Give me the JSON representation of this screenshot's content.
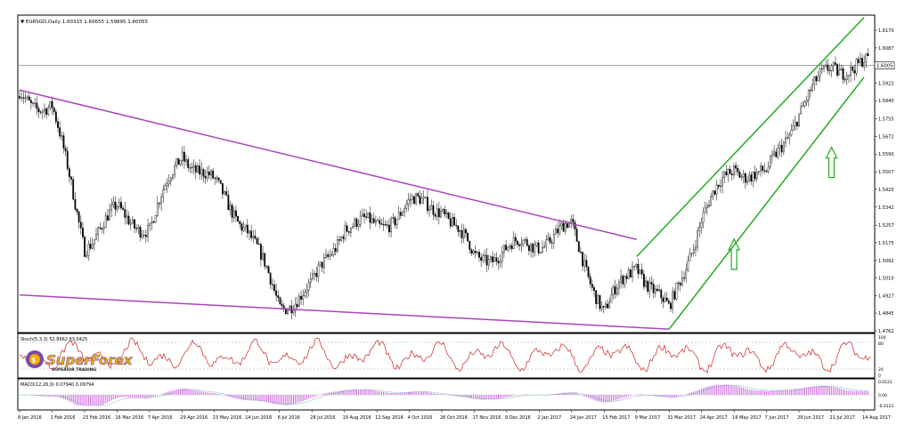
{
  "header": {
    "symbol_label": "EURSGD,Daily",
    "ohlc": "1.60315 1.60655 1.59895 1.60055"
  },
  "stoch": {
    "label": "Stoch(5,3,3) 52.8662 63.0425",
    "ticks": [
      "100",
      "80",
      "20",
      "0"
    ]
  },
  "macd": {
    "label": "MACD(12,26,9) 0.07940 0.09794",
    "ticks": [
      "0.0122",
      "0.00",
      "-0.0122"
    ]
  },
  "logo": {
    "brand": "SuperForex",
    "tagline": "SUPERIOR TRADING"
  },
  "colors": {
    "candles": "#000000",
    "channel": "#22aa22",
    "wedge": "#aa44bb",
    "stoch_line": "#cc2222",
    "macd_hist": "#cc66dd",
    "macd_signal": "#4aa0a0",
    "current_price_line": "#888888"
  },
  "chart_data": {
    "type": "candlestick",
    "title": "EURSGD,Daily",
    "price_axis": {
      "ticks": [
        "1.6170",
        "1.6087",
        "1.6005",
        "1.5922",
        "1.5840",
        "1.5755",
        "1.5672",
        "1.5590",
        "1.5507",
        "1.5425",
        "1.5342",
        "1.5257",
        "1.5175",
        "1.5092",
        "1.5010",
        "1.4927",
        "1.4845",
        "1.4762"
      ],
      "current_price": "1.6005",
      "ylim": [
        1.4762,
        1.617
      ]
    },
    "date_axis": {
      "ticks": [
        "8 Jan 2016",
        "1 Feb 2016",
        "23 Feb 2016",
        "16 Mar 2016",
        "7 Apr 2016",
        "29 Apr 2016",
        "23 May 2016",
        "14 Jun 2016",
        "6 Jul 2016",
        "28 Jul 2016",
        "19 Aug 2016",
        "12 Sep 2016",
        "4 Oct 2016",
        "26 Oct 2016",
        "17 Nov 2016",
        "9 Dec 2016",
        "2 Jan 2017",
        "24 Jan 2017",
        "15 Feb 2017",
        "9 Mar 2017",
        "31 Mar 2017",
        "24 Apr 2017",
        "16 May 2017",
        "7 Jun 2017",
        "29 Jun 2017",
        "21 Jul 2017",
        "14 Aug 2017"
      ]
    },
    "close_path": {
      "note_series": "approximate closing levels at each date tick",
      "dates": [
        "8 Jan 2016",
        "1 Feb 2016",
        "23 Feb 2016",
        "16 Mar 2016",
        "7 Apr 2016",
        "29 Apr 2016",
        "23 May 2016",
        "14 Jun 2016",
        "6 Jul 2016",
        "28 Jul 2016",
        "19 Aug 2016",
        "12 Sep 2016",
        "4 Oct 2016",
        "26 Oct 2016",
        "17 Nov 2016",
        "9 Dec 2016",
        "2 Jan 2017",
        "24 Jan 2017",
        "15 Feb 2017",
        "9 Mar 2017",
        "31 Mar 2017",
        "24 Apr 2017",
        "16 May 2017",
        "7 Jun 2017",
        "29 Jun 2017",
        "21 Jul 2017",
        "14 Aug 2017"
      ],
      "values": [
        1.586,
        1.581,
        1.517,
        1.532,
        1.524,
        1.56,
        1.544,
        1.525,
        1.488,
        1.496,
        1.526,
        1.525,
        1.535,
        1.535,
        1.51,
        1.514,
        1.518,
        1.524,
        1.485,
        1.508,
        1.484,
        1.53,
        1.553,
        1.548,
        1.58,
        1.6,
        1.6005
      ]
    },
    "lines": [
      {
        "name": "",
        "kind": "wedge-upper",
        "from": [
          "8 Jan 2016",
          1.589
        ],
        "to": [
          "9 Mar 2017",
          1.519
        ]
      },
      {
        "name": "",
        "kind": "wedge-lower",
        "from": [
          "8 Jan 2016",
          1.493
        ],
        "to": [
          "31 Mar 2017",
          1.477
        ]
      },
      {
        "name": "",
        "kind": "channel-upper",
        "from": [
          "9 Mar 2017",
          1.511
        ],
        "to": [
          "14 Aug 2017",
          1.623
        ]
      },
      {
        "name": "",
        "kind": "channel-lower",
        "from": [
          "31 Mar 2017",
          1.477
        ],
        "to": [
          "14 Aug 2017",
          1.595
        ]
      }
    ],
    "arrows": [
      {
        "direction": "up",
        "at": [
          "16 May 2017",
          1.505
        ]
      },
      {
        "direction": "up",
        "at": [
          "21 Jul 2017",
          1.548
        ]
      }
    ],
    "grid": false
  }
}
